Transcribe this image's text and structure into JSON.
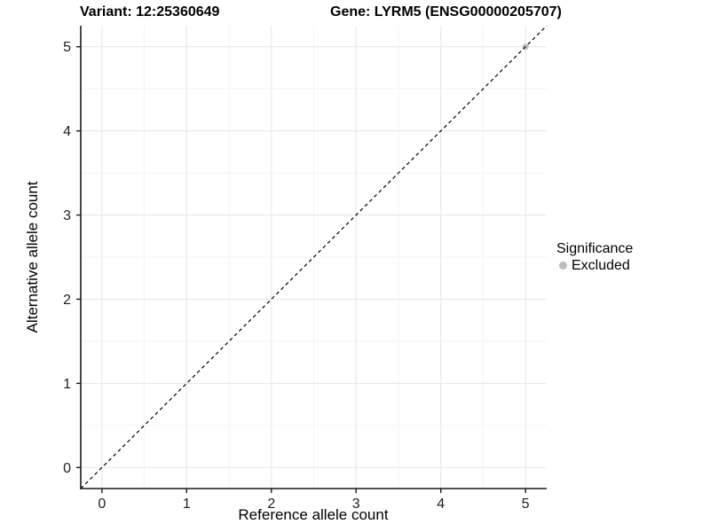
{
  "header": {
    "title_left": "Variant: 12:25360649",
    "title_right": "Gene: LYRM5 (ENSG00000205707)"
  },
  "chart_data": {
    "type": "scatter",
    "title_left": "Variant: 12:25360649",
    "title_right": "Gene: LYRM5 (ENSG00000205707)",
    "xlabel": "Reference allele count",
    "ylabel": "Alternative allele count",
    "xlim": [
      -0.25,
      5.25
    ],
    "ylim": [
      -0.25,
      5.25
    ],
    "xticks": [
      0,
      1,
      2,
      3,
      4,
      5
    ],
    "yticks": [
      0,
      1,
      2,
      3,
      4,
      5
    ],
    "minor_gridlines_x": [
      0.5,
      1.5,
      2.5,
      3.5,
      4.5
    ],
    "minor_gridlines_y": [
      0.5,
      1.5,
      2.5,
      3.5,
      4.5
    ],
    "grid": true,
    "points": [
      {
        "x": 5,
        "y": 5,
        "series": "Excluded"
      }
    ],
    "reference_line": {
      "slope": 1,
      "intercept": 0,
      "style": "dashed",
      "color": "#000000"
    },
    "legend": {
      "title": "Significance",
      "position": "right",
      "items": [
        {
          "label": "Excluded",
          "color": "#bdbdbd"
        }
      ]
    },
    "colors": {
      "point_excluded": "#bdbdbd",
      "major_grid": "#e5e5e5",
      "minor_grid": "#f3f3f3",
      "axis_line": "#1a1a1a",
      "tick_text": "#1f1f1f",
      "background": "#ffffff"
    }
  }
}
